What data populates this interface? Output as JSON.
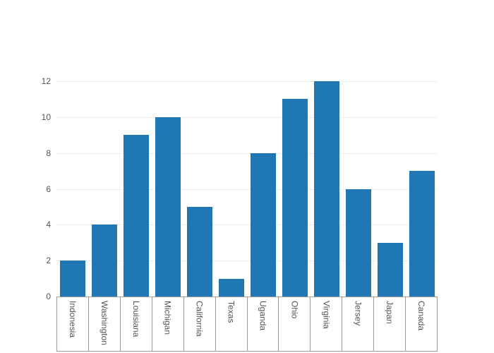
{
  "chart_data": {
    "type": "bar",
    "categories": [
      "Indonesia",
      "Washington",
      "Louisiana",
      "Michigan",
      "California",
      "Texas",
      "Uganda",
      "Ohio",
      "Virginia",
      "Jersey",
      "Japan",
      "Canada"
    ],
    "values": [
      2,
      4,
      9,
      10,
      5,
      1,
      8,
      11,
      12,
      6,
      3,
      7
    ],
    "title": "",
    "xlabel": "",
    "ylabel": "",
    "ylim": [
      0,
      12
    ],
    "yticks": [
      0,
      2,
      4,
      6,
      8,
      10,
      12
    ],
    "grid": true,
    "legend_position": "none",
    "bar_color": "#1f77b4",
    "grid_color": "#ececec",
    "axis_line_color": "#999999",
    "y_tick_label_color": "#555555",
    "x_label_color": "#555555",
    "background_color": "#ffffff"
  }
}
